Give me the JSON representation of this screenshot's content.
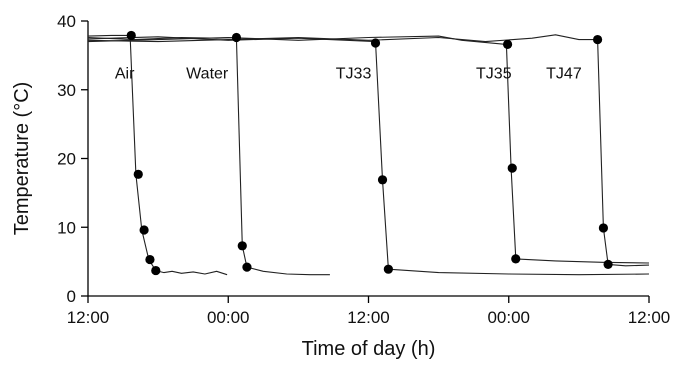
{
  "chart_data": {
    "type": "line",
    "title": "",
    "xlabel": "Time of day (h)",
    "ylabel": "Temperature (°C)",
    "x_unit": "hours from first 12:00",
    "xlim": [
      0,
      48
    ],
    "ylim": [
      0,
      40
    ],
    "x_ticks": [
      {
        "value": 0,
        "label": "12:00"
      },
      {
        "value": 12,
        "label": "00:00"
      },
      {
        "value": 24,
        "label": "12:00"
      },
      {
        "value": 36,
        "label": "00:00"
      },
      {
        "value": 48,
        "label": "12:00"
      }
    ],
    "y_ticks": [
      {
        "value": 0,
        "label": "0"
      },
      {
        "value": 10,
        "label": "10"
      },
      {
        "value": 20,
        "label": "20"
      },
      {
        "value": 30,
        "label": "30"
      },
      {
        "value": 40,
        "label": "40"
      }
    ],
    "grid": false,
    "series": [
      {
        "name": "Air",
        "label_pos": {
          "x": 2.3,
          "y": 32.5
        },
        "line": [
          [
            0,
            37.8
          ],
          [
            2,
            37.9
          ],
          [
            3.6,
            37.9
          ],
          [
            4.1,
            17.7
          ],
          [
            4.6,
            9.6
          ],
          [
            5.2,
            5.3
          ],
          [
            5.8,
            3.7
          ],
          [
            6.5,
            3.4
          ],
          [
            7.2,
            3.6
          ],
          [
            8,
            3.3
          ],
          [
            9,
            3.5
          ],
          [
            10,
            3.2
          ],
          [
            11,
            3.6
          ],
          [
            11.9,
            3.1
          ]
        ],
        "markers": [
          [
            3.7,
            37.9
          ],
          [
            4.3,
            17.7
          ],
          [
            4.8,
            9.6
          ],
          [
            5.3,
            5.3
          ],
          [
            5.8,
            3.7
          ]
        ]
      },
      {
        "name": "Water",
        "label_pos": {
          "x": 8.4,
          "y": 32.5
        },
        "line": [
          [
            0,
            37.6
          ],
          [
            4,
            37.3
          ],
          [
            8,
            37.6
          ],
          [
            11,
            37.5
          ],
          [
            12.7,
            37.6
          ],
          [
            13.2,
            7.3
          ],
          [
            13.6,
            4.2
          ],
          [
            15,
            3.6
          ],
          [
            17,
            3.2
          ],
          [
            19,
            3.1
          ],
          [
            20.7,
            3.1
          ]
        ],
        "markers": [
          [
            12.7,
            37.6
          ],
          [
            13.2,
            7.3
          ],
          [
            13.6,
            4.2
          ]
        ]
      },
      {
        "name": "TJ33",
        "label_pos": {
          "x": 21.2,
          "y": 32.5
        },
        "line": [
          [
            0,
            37.4
          ],
          [
            6,
            37.7
          ],
          [
            12,
            37.2
          ],
          [
            18,
            37.5
          ],
          [
            24.6,
            37.0
          ],
          [
            25.2,
            16.9
          ],
          [
            25.7,
            3.9
          ],
          [
            30,
            3.4
          ],
          [
            36,
            3.2
          ],
          [
            42,
            3.1
          ],
          [
            48,
            3.2
          ]
        ],
        "markers": [
          [
            24.6,
            36.8
          ],
          [
            25.2,
            16.9
          ],
          [
            25.7,
            3.9
          ]
        ]
      },
      {
        "name": "TJ35",
        "label_pos": {
          "x": 33.2,
          "y": 32.5
        },
        "line": [
          [
            0,
            37.0
          ],
          [
            6,
            37.3
          ],
          [
            12,
            37.6
          ],
          [
            18,
            37.2
          ],
          [
            24,
            37.6
          ],
          [
            30,
            37.8
          ],
          [
            32,
            37.2
          ],
          [
            35.8,
            36.6
          ],
          [
            36.2,
            18.6
          ],
          [
            36.6,
            5.4
          ],
          [
            40,
            5.1
          ],
          [
            44,
            4.9
          ],
          [
            48,
            4.8
          ]
        ],
        "markers": [
          [
            35.9,
            36.6
          ],
          [
            36.3,
            18.6
          ],
          [
            36.6,
            5.4
          ]
        ]
      },
      {
        "name": "TJ47",
        "label_pos": {
          "x": 39.2,
          "y": 32.5
        },
        "line": [
          [
            0,
            37.2
          ],
          [
            6,
            37.0
          ],
          [
            12,
            37.3
          ],
          [
            18,
            37.6
          ],
          [
            24,
            37.2
          ],
          [
            30,
            37.6
          ],
          [
            34,
            37.0
          ],
          [
            38,
            37.5
          ],
          [
            40,
            38.0
          ],
          [
            42,
            37.3
          ],
          [
            43.6,
            37.3
          ],
          [
            44.1,
            9.9
          ],
          [
            44.5,
            4.6
          ],
          [
            46,
            4.4
          ],
          [
            48,
            4.5
          ]
        ],
        "markers": [
          [
            43.6,
            37.3
          ],
          [
            44.1,
            9.9
          ],
          [
            44.5,
            4.6
          ]
        ]
      }
    ]
  }
}
